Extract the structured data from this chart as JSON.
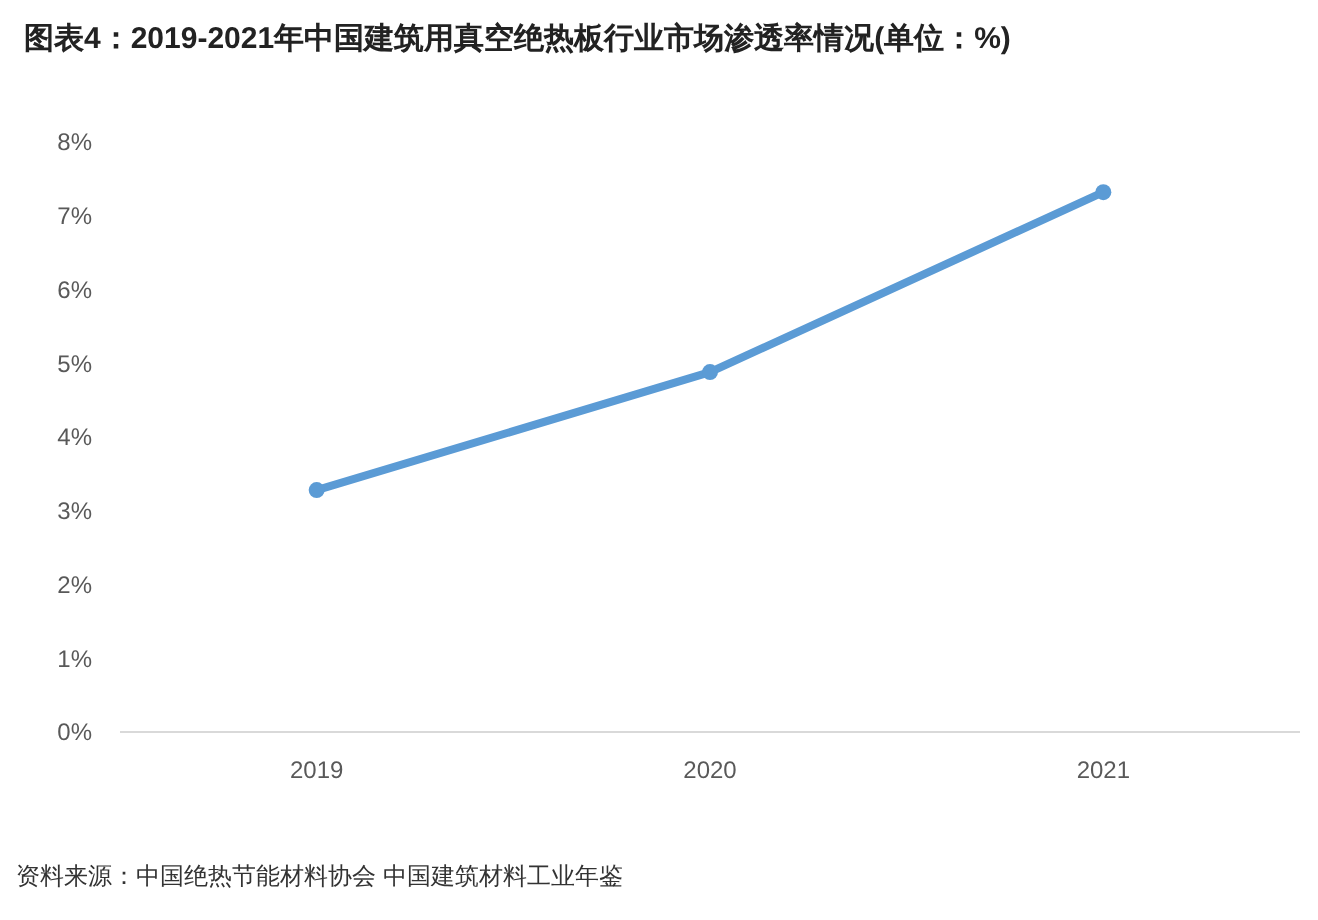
{
  "chart_data": {
    "type": "line",
    "title": "图表4：2019-2021年中国建筑用真空绝热板行业市场渗透率情况(单位：%)",
    "categories": [
      "2019",
      "2020",
      "2021"
    ],
    "series": [
      {
        "color": "#5b9bd5",
        "values": [
          3.28,
          4.88,
          7.32
        ]
      }
    ],
    "ylim": [
      0,
      8
    ],
    "yticks": [
      {
        "value": 0,
        "label": "0%"
      },
      {
        "value": 1,
        "label": "1%"
      },
      {
        "value": 2,
        "label": "2%"
      },
      {
        "value": 3,
        "label": "3%"
      },
      {
        "value": 4,
        "label": "4%"
      },
      {
        "value": 5,
        "label": "5%"
      },
      {
        "value": 6,
        "label": "6%"
      },
      {
        "value": 7,
        "label": "7%"
      },
      {
        "value": 8,
        "label": "8%"
      }
    ],
    "marker": "circle",
    "grid": false,
    "annotations": [
      "资料来源：中国绝热节能材料协会 中国建筑材料工业年鉴"
    ]
  }
}
